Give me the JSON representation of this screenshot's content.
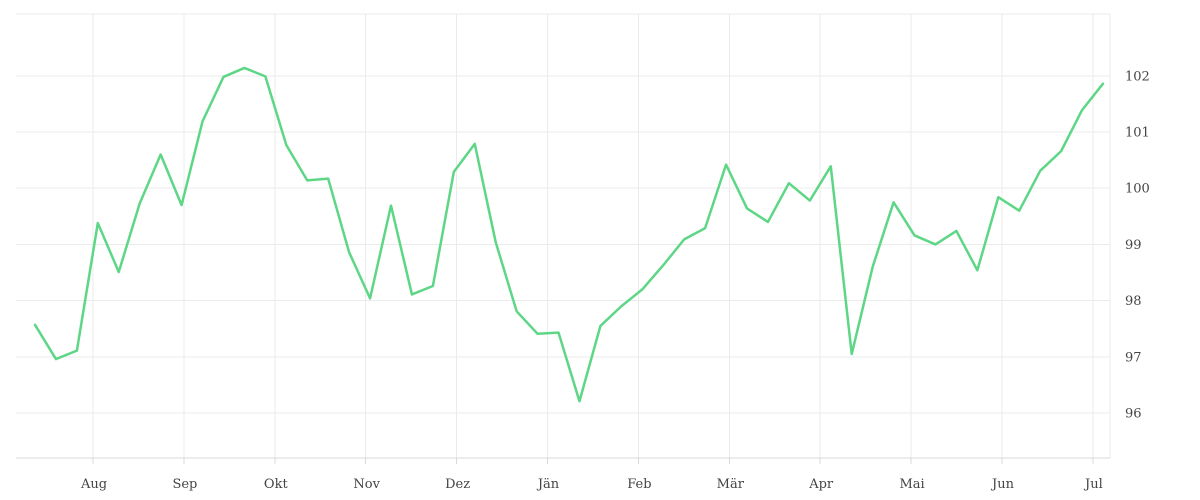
{
  "chart_data": {
    "type": "line",
    "title": "",
    "xlabel": "",
    "ylabel": "",
    "ylim": [
      95.2,
      103.1
    ],
    "y_ticks": [
      96,
      97,
      98,
      99,
      100,
      101,
      102
    ],
    "x_ticks": [
      "Aug",
      "Sep",
      "Okt",
      "Nov",
      "Dez",
      "Jän",
      "Feb",
      "Mär",
      "Apr",
      "Mai",
      "Jun",
      "Jul"
    ],
    "grid": true,
    "legend": "none",
    "y_axis_side": "right",
    "line_color": "#5dd686",
    "series": [
      {
        "values": [
          97.57,
          96.96,
          97.11,
          99.38,
          98.51,
          99.73,
          100.6,
          99.7,
          101.19,
          101.98,
          102.14,
          101.99,
          100.77,
          100.14,
          100.17,
          98.86,
          98.04,
          99.69,
          98.11,
          98.26,
          100.29,
          100.79,
          99.04,
          97.81,
          97.41,
          97.43,
          96.21,
          97.55,
          97.9,
          98.2,
          98.63,
          99.09,
          99.29,
          100.42,
          99.64,
          99.4,
          100.09,
          99.78,
          100.39,
          97.05,
          98.6,
          99.75,
          99.16,
          99.0,
          99.24,
          98.54,
          99.84,
          99.6,
          100.31,
          100.66,
          101.39,
          101.86
        ]
      }
    ]
  }
}
